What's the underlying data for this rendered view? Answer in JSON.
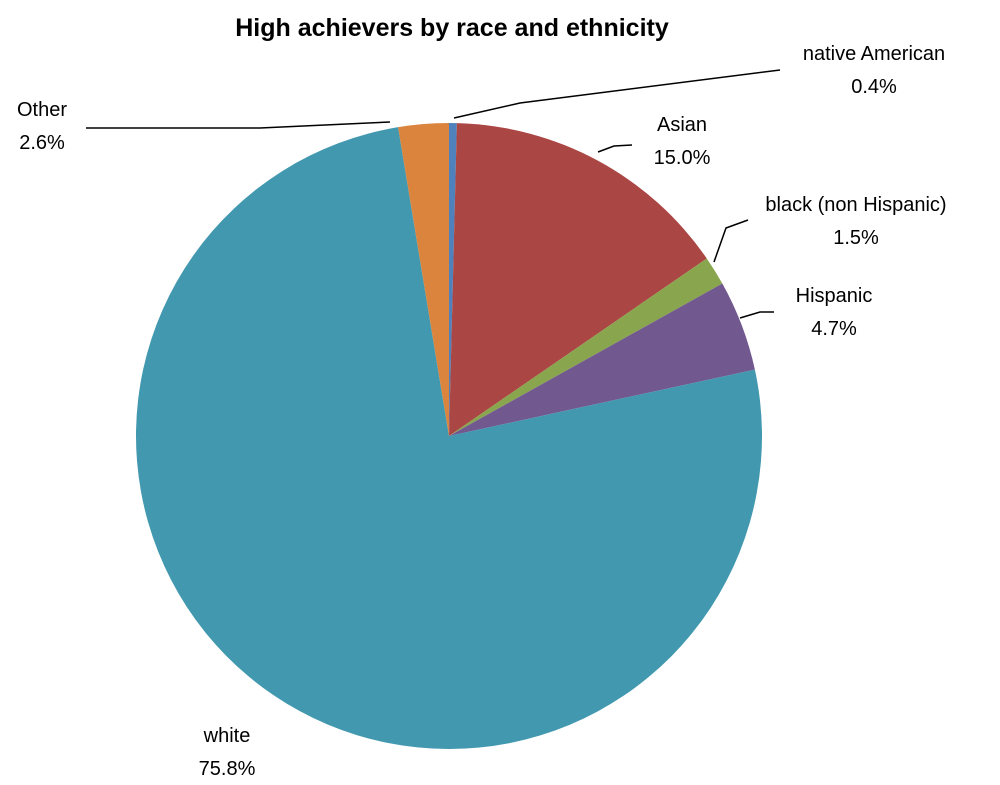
{
  "chart_data": {
    "type": "pie",
    "title": "High achievers by race and ethnicity",
    "slices": [
      {
        "name": "native American",
        "value": 0.4,
        "label": "0.4%",
        "color": "#4f81bd"
      },
      {
        "name": "Asian",
        "value": 15.0,
        "label": "15.0%",
        "color": "#aa4643"
      },
      {
        "name": "black (non Hispanic)",
        "value": 1.5,
        "label": "1.5%",
        "color": "#89a54e"
      },
      {
        "name": "Hispanic",
        "value": 4.7,
        "label": "4.7%",
        "color": "#71588f"
      },
      {
        "name": "white",
        "value": 75.8,
        "label": "75.8%",
        "color": "#4198af"
      },
      {
        "name": "Other",
        "value": 2.6,
        "label": "2.6%",
        "color": "#db843d"
      }
    ]
  }
}
